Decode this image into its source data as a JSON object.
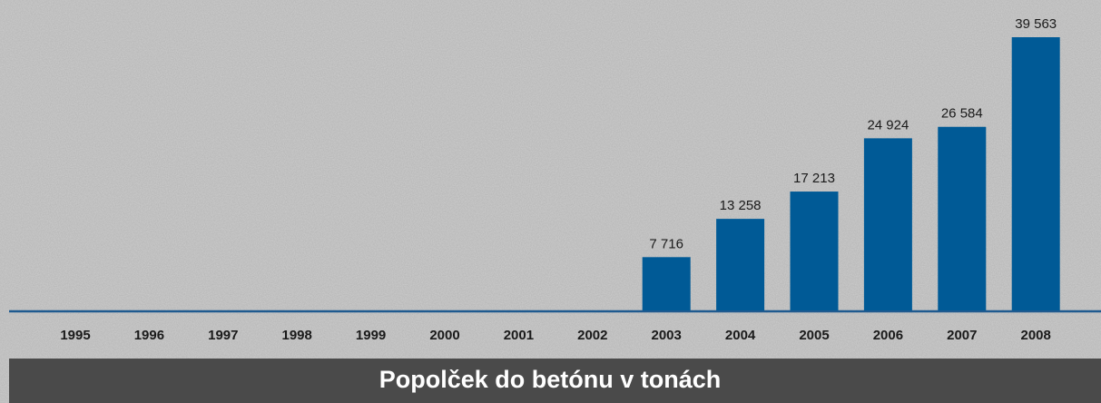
{
  "chart_data": {
    "type": "bar",
    "title": "Popolček do betónu v tonách",
    "categories": [
      "1995",
      "1996",
      "1997",
      "1998",
      "1999",
      "2000",
      "2001",
      "2002",
      "2003",
      "2004",
      "2005",
      "2006",
      "2007",
      "2008"
    ],
    "values": [
      null,
      null,
      null,
      null,
      null,
      null,
      null,
      null,
      7716,
      13258,
      17213,
      24924,
      26584,
      39563
    ],
    "value_labels": [
      null,
      null,
      null,
      null,
      null,
      null,
      null,
      null,
      "7 716",
      "13 258",
      "17 213",
      "24 924",
      "26 584",
      "39 563"
    ],
    "color": "#005a96"
  }
}
